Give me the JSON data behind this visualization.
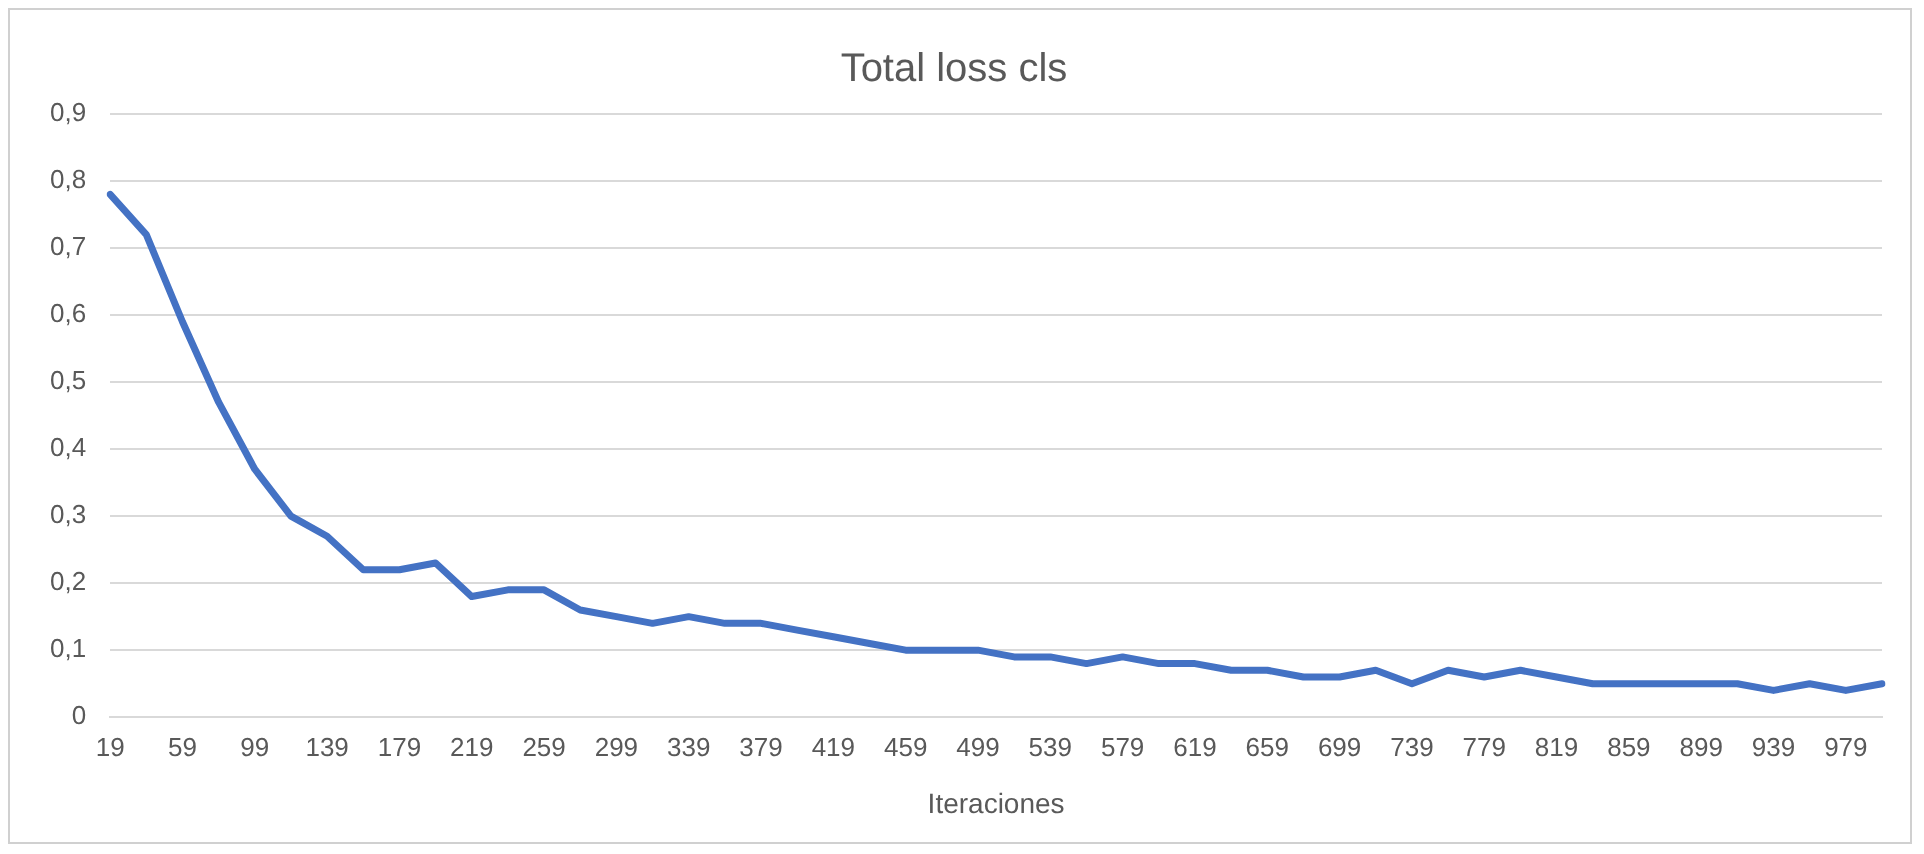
{
  "chart_data": {
    "type": "line",
    "title": "Total loss cls",
    "xlabel": "Iteraciones",
    "categories": [
      "19",
      null,
      "59",
      null,
      "99",
      null,
      "139",
      null,
      "179",
      null,
      "219",
      null,
      "259",
      null,
      "299",
      null,
      "339",
      null,
      "379",
      null,
      "419",
      null,
      "459",
      null,
      "499",
      null,
      "539",
      null,
      "579",
      null,
      "619",
      null,
      "659",
      null,
      "699",
      null,
      "739",
      null,
      "779",
      null,
      "819",
      null,
      "859",
      null,
      "899",
      null,
      "939",
      null,
      "979",
      null
    ],
    "series": [
      {
        "color": "#4472c4",
        "values": [
          0.78,
          0.72,
          0.59,
          0.47,
          0.37,
          0.3,
          0.27,
          0.22,
          0.22,
          0.23,
          0.18,
          0.19,
          0.19,
          0.16,
          0.15,
          0.14,
          0.15,
          0.14,
          0.14,
          0.13,
          0.12,
          0.11,
          0.1,
          0.1,
          0.1,
          0.09,
          0.09,
          0.08,
          0.09,
          0.08,
          0.08,
          0.07,
          0.07,
          0.06,
          0.06,
          0.07,
          0.05,
          0.07,
          0.06,
          0.07,
          0.06,
          0.05,
          0.05,
          0.05,
          0.05,
          0.05,
          0.04,
          0.05,
          0.04,
          0.05
        ]
      }
    ],
    "ylim": [
      0,
      0.9
    ],
    "yticks": [
      {
        "value": 0,
        "label": "0"
      },
      {
        "value": 0.1,
        "label": "0,1"
      },
      {
        "value": 0.2,
        "label": "0,2"
      },
      {
        "value": 0.3,
        "label": "0,3"
      },
      {
        "value": 0.4,
        "label": "0,4"
      },
      {
        "value": 0.5,
        "label": "0,5"
      },
      {
        "value": 0.6,
        "label": "0,6"
      },
      {
        "value": 0.7,
        "label": "0,7"
      },
      {
        "value": 0.8,
        "label": "0,8"
      },
      {
        "value": 0.9,
        "label": "0,9"
      }
    ],
    "grid": "y",
    "legend": false,
    "marker": "none",
    "line_style": "solid"
  }
}
